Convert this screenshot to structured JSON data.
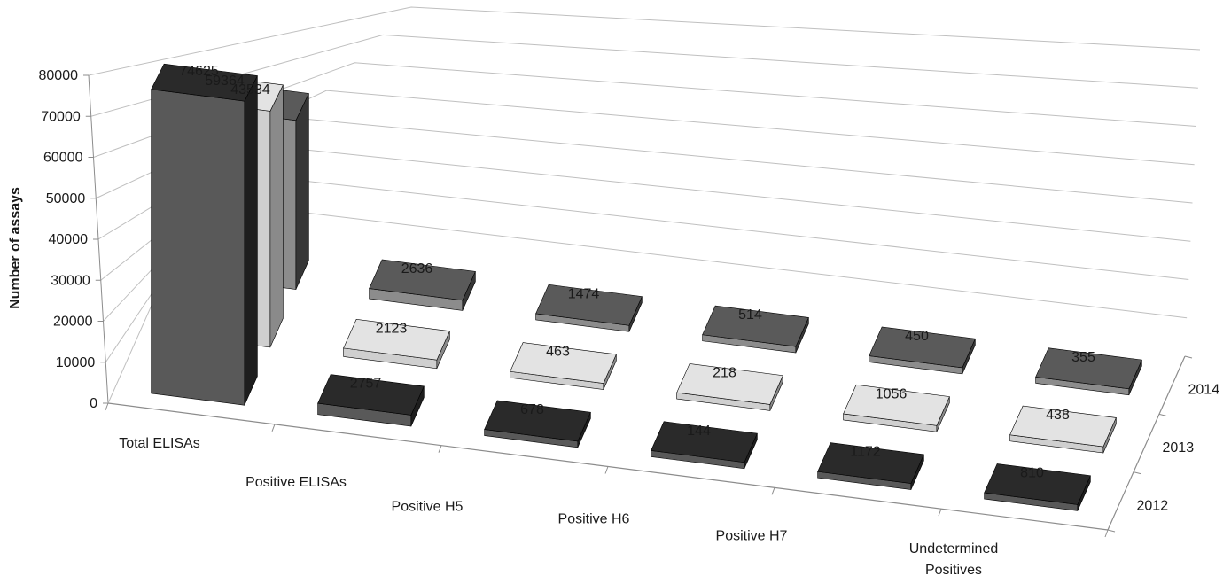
{
  "chart_data": {
    "type": "bar",
    "variant": "3d-column",
    "categories": [
      "Total ELISAs",
      "Positive ELISAs",
      "Positive H5",
      "Positive H6",
      "Positive H7",
      "Undetermined Positives"
    ],
    "depth_categories": [
      "2014",
      "2013",
      "2012"
    ],
    "series": [
      {
        "name": "2012",
        "values": [
          74625,
          2757,
          678,
          144,
          1172,
          810
        ]
      },
      {
        "name": "2013",
        "values": [
          59364,
          2123,
          463,
          218,
          1056,
          438
        ]
      },
      {
        "name": "2014",
        "values": [
          43534,
          2636,
          1474,
          514,
          450,
          355
        ]
      }
    ],
    "ylabel": "Number of assays",
    "xlabel": "",
    "title": "",
    "ylim": [
      0,
      80000
    ],
    "yticks": [
      "0",
      "10000",
      "20000",
      "30000",
      "40000",
      "50000",
      "60000",
      "70000",
      "80000"
    ],
    "data_labels": {
      "2012": [
        "74625",
        "2757",
        "678",
        "144",
        "1172",
        "810"
      ],
      "2013": [
        "59364",
        "2123",
        "463",
        "218",
        "1056",
        "438"
      ],
      "2014": [
        "43534",
        "2636",
        "1474",
        "514",
        "450",
        "355"
      ]
    },
    "grid": true,
    "legend": "none",
    "colors": {
      "2012": {
        "front": "#595959",
        "side": "#1e1e1e",
        "top": "#2a2a2a"
      },
      "2013": {
        "front": "#cfcfcf",
        "side": "#8a8a8a",
        "top": "#e3e3e3"
      },
      "2014": {
        "front": "#8c8c8c",
        "side": "#363636",
        "top": "#5a5a5a"
      }
    },
    "gridline_color": "#bfbfbf",
    "axis_color": "#8c8c8c"
  }
}
